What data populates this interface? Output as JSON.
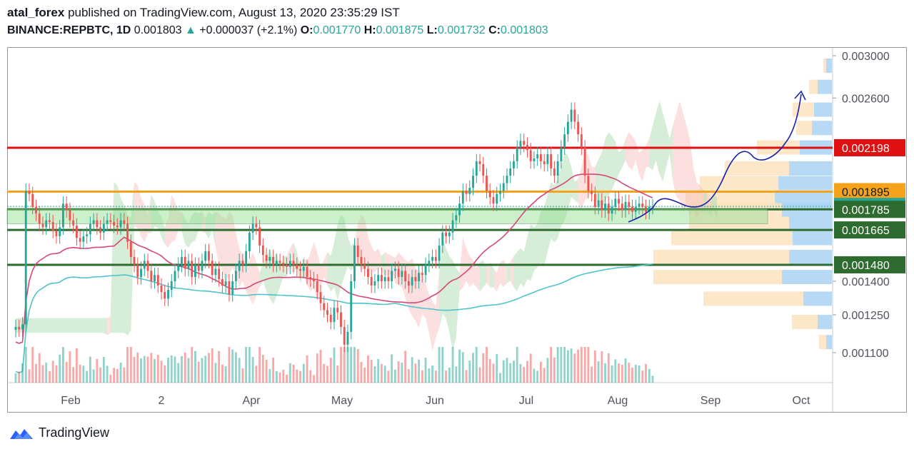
{
  "header": {
    "author": "atal_forex",
    "published": "published on TradingView.com, August 13, 2020 23:35:29 IST",
    "symbol": "BINANCE:REPBTC, 1D",
    "last": "0.001803",
    "change_arrow": "▲",
    "change": "+0.000037 (+2.1%)",
    "o_label": "O:",
    "o_value": "0.001770",
    "h_label": "H:",
    "h_value": "0.001875",
    "l_label": "L:",
    "l_value": "0.001732",
    "c_label": "C:",
    "c_value": "0.001803"
  },
  "brand": {
    "name": "TradingView",
    "icon": "tradingview-cloud-icon"
  },
  "colors": {
    "up": "#26a69a",
    "down": "#ef5350",
    "red_line": "#e01010",
    "orange_line": "#f7a21b",
    "green_line": "#2e6b2e",
    "ma_pink": "#d6477a",
    "ma_cyan": "#4fc3c9",
    "box_green": "#8fe08f",
    "path_blue": "#1a22a8"
  },
  "chart_data": {
    "type": "candlestick",
    "y_scale": "log",
    "x_ticks": [
      "Feb",
      "2",
      "Apr",
      "May",
      "Jun",
      "Jul",
      "Aug",
      "Sep",
      "Oct"
    ],
    "y_ticks": [
      "0.003000",
      "0.002600",
      "0.001400",
      "0.001250",
      "0.001100"
    ],
    "last_price": 0.001803,
    "horizontal_levels": [
      {
        "price": 0.002198,
        "label": "0.002198",
        "color": "#e01010"
      },
      {
        "price": 0.001895,
        "label": "0.001895",
        "color": "#f7a21b"
      },
      {
        "price": 0.001785,
        "label": "0.001785",
        "color": "#2e6b2e"
      },
      {
        "price": 0.001665,
        "label": "0.001665",
        "color": "#2e6b2e"
      },
      {
        "price": 0.00148,
        "label": "0.001480",
        "color": "#2e6b2e"
      }
    ],
    "price_tag": {
      "price": 0.001803,
      "label": "0.001803",
      "color": "#26a69a"
    },
    "closes": [
      0.0012,
      0.00119,
      0.00121,
      0.0019,
      0.00188,
      0.0018,
      0.00176,
      0.0017,
      0.00168,
      0.00172,
      0.00171,
      0.00166,
      0.00163,
      0.00168,
      0.00182,
      0.00178,
      0.00172,
      0.00169,
      0.00162,
      0.0016,
      0.00163,
      0.00164,
      0.0017,
      0.00172,
      0.00168,
      0.00165,
      0.0017,
      0.00172,
      0.00171,
      0.00169,
      0.00168,
      0.00172,
      0.0017,
      0.0016,
      0.00152,
      0.00148,
      0.00142,
      0.00146,
      0.0015,
      0.00145,
      0.0014,
      0.00143,
      0.00138,
      0.00135,
      0.00132,
      0.00136,
      0.0014,
      0.00145,
      0.00148,
      0.00152,
      0.00146,
      0.0015,
      0.00142,
      0.00148,
      0.00145,
      0.0015,
      0.00155,
      0.0015,
      0.00143,
      0.00146,
      0.00141,
      0.00138,
      0.0014,
      0.00134,
      0.0014,
      0.00145,
      0.0015,
      0.00148,
      0.00155,
      0.00165,
      0.0017,
      0.00168,
      0.00158,
      0.00153,
      0.0015,
      0.00152,
      0.00148,
      0.0015,
      0.00149,
      0.00148,
      0.00147,
      0.0015,
      0.00148,
      0.00146,
      0.00145,
      0.00147,
      0.00142,
      0.00141,
      0.0014,
      0.00135,
      0.0013,
      0.00127,
      0.00125,
      0.00122,
      0.00128,
      0.00126,
      0.0012,
      0.00113,
      0.00118,
      0.0014,
      0.00158,
      0.00152,
      0.00148,
      0.00146,
      0.00142,
      0.00138,
      0.0014,
      0.00143,
      0.0014,
      0.00142,
      0.0014,
      0.00145,
      0.00146,
      0.00142,
      0.00145,
      0.0014,
      0.00138,
      0.00142,
      0.0014,
      0.00144,
      0.00143,
      0.00148,
      0.0015,
      0.00152,
      0.0015,
      0.00158,
      0.00165,
      0.00163,
      0.00165,
      0.00172,
      0.00175,
      0.00182,
      0.0019,
      0.00188,
      0.00192,
      0.002,
      0.0021,
      0.00208,
      0.002,
      0.0019,
      0.00186,
      0.00182,
      0.00188,
      0.0019,
      0.00195,
      0.002,
      0.00205,
      0.0021,
      0.0022,
      0.00225,
      0.00222,
      0.00218,
      0.0021,
      0.00212,
      0.00215,
      0.0021,
      0.00208,
      0.00215,
      0.00205,
      0.002,
      0.0021,
      0.0022,
      0.0023,
      0.0024,
      0.0025,
      0.0024,
      0.0023,
      0.0022,
      0.002,
      0.0019,
      0.00188,
      0.0018,
      0.00184,
      0.00178,
      0.00182,
      0.00176,
      0.0018,
      0.00185,
      0.00182,
      0.00178,
      0.00183,
      0.0018,
      0.00177,
      0.0018,
      0.00182,
      0.0018,
      0.00177,
      0.0018,
      0.001803
    ]
  }
}
